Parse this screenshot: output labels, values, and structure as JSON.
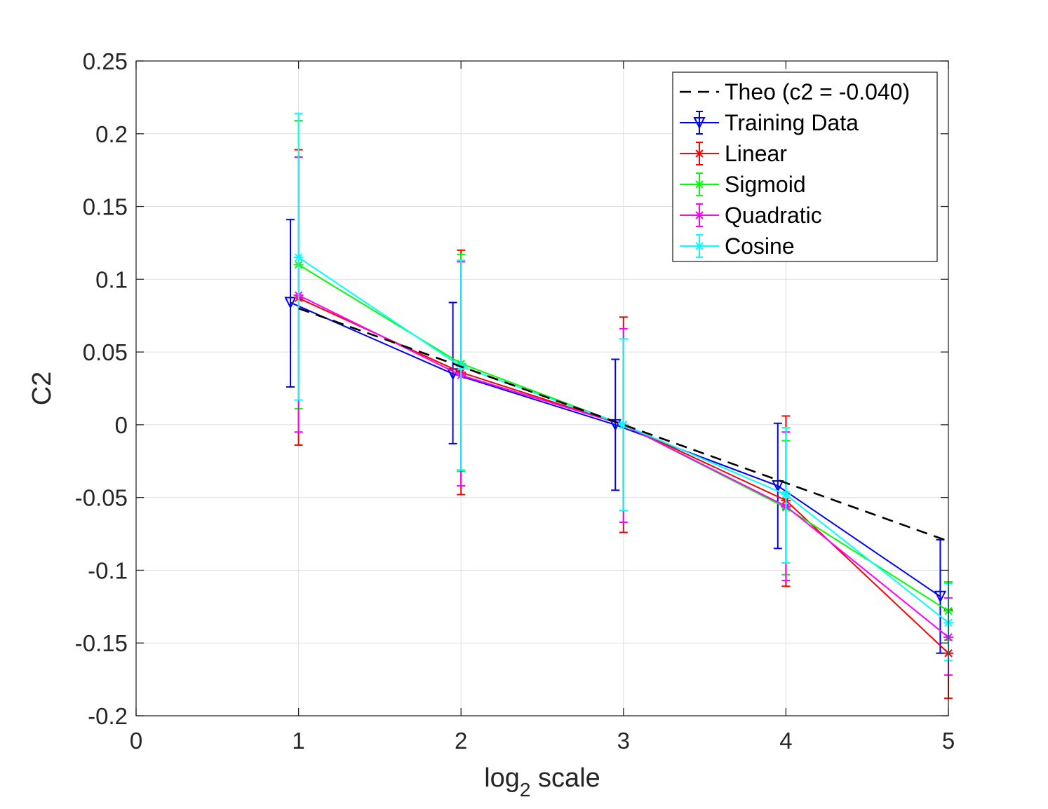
{
  "chart_data": {
    "type": "line",
    "xlabel": "log",
    "xlabel_sub": "2",
    "xlabel_rest": " scale",
    "ylabel": "C2",
    "xlim": [
      0,
      5
    ],
    "ylim": [
      -0.2,
      0.25
    ],
    "xticks": [
      0,
      1,
      2,
      3,
      4,
      5
    ],
    "xtick_labels": [
      "0",
      "1",
      "2",
      "3",
      "4",
      "5"
    ],
    "yticks": [
      -0.2,
      -0.15,
      -0.1,
      -0.05,
      0,
      0.05,
      0.1,
      0.15,
      0.2,
      0.25
    ],
    "ytick_labels": [
      "-0.2",
      "-0.15",
      "-0.1",
      "-0.05",
      "0",
      "0.05",
      "0.1",
      "0.15",
      "0.2",
      "0.25"
    ],
    "grid": true,
    "legend_position": "top-right",
    "series": [
      {
        "name": "Theo (c2 = -0.040)",
        "color": "#000000",
        "dash": true,
        "marker": "none",
        "x": [
          1,
          2,
          3,
          4,
          5
        ],
        "y": [
          0.08,
          0.04,
          0.0,
          -0.04,
          -0.08
        ]
      },
      {
        "name": "Training Data",
        "color": "#0000ff",
        "marker": "triangle-down",
        "x": [
          0.95,
          1.95,
          2.95,
          3.95,
          4.95
        ],
        "y": [
          0.084,
          0.035,
          0.0,
          -0.042,
          -0.118
        ],
        "err_low": [
          0.026,
          -0.013,
          -0.045,
          -0.085,
          -0.157
        ],
        "err_high": [
          0.141,
          0.084,
          0.045,
          0.001,
          -0.079
        ]
      },
      {
        "name": "Linear",
        "color": "#ff0000",
        "marker": "star",
        "x": [
          1,
          2,
          3,
          4,
          5
        ],
        "y": [
          0.087,
          0.036,
          0.0,
          -0.052,
          -0.157
        ],
        "err_low": [
          -0.014,
          -0.048,
          -0.074,
          -0.111,
          -0.188
        ],
        "err_high": [
          0.189,
          0.12,
          0.074,
          0.006,
          -0.127
        ]
      },
      {
        "name": "Sigmoid",
        "color": "#00ff00",
        "marker": "star",
        "x": [
          1,
          2,
          3,
          4,
          5
        ],
        "y": [
          0.11,
          0.042,
          0.0,
          -0.057,
          -0.128
        ],
        "err_low": [
          0.011,
          -0.032,
          -0.059,
          -0.103,
          -0.148
        ],
        "err_high": [
          0.209,
          0.117,
          0.059,
          -0.011,
          -0.108
        ]
      },
      {
        "name": "Quadratic",
        "color": "#ff00ff",
        "marker": "star",
        "x": [
          1,
          2,
          3,
          4,
          5
        ],
        "y": [
          0.089,
          0.034,
          0.0,
          -0.056,
          -0.146
        ],
        "err_low": [
          -0.005,
          -0.042,
          -0.067,
          -0.107,
          -0.172
        ],
        "err_high": [
          0.184,
          0.112,
          0.066,
          -0.005,
          -0.119
        ]
      },
      {
        "name": "Cosine",
        "color": "#00ffff",
        "marker": "star",
        "x": [
          1,
          2,
          3,
          4,
          5
        ],
        "y": [
          0.115,
          0.04,
          0.0,
          -0.048,
          -0.136
        ],
        "err_low": [
          0.017,
          -0.031,
          -0.059,
          -0.095,
          -0.162
        ],
        "err_high": [
          0.214,
          0.113,
          0.059,
          -0.002,
          -0.109
        ]
      }
    ]
  }
}
